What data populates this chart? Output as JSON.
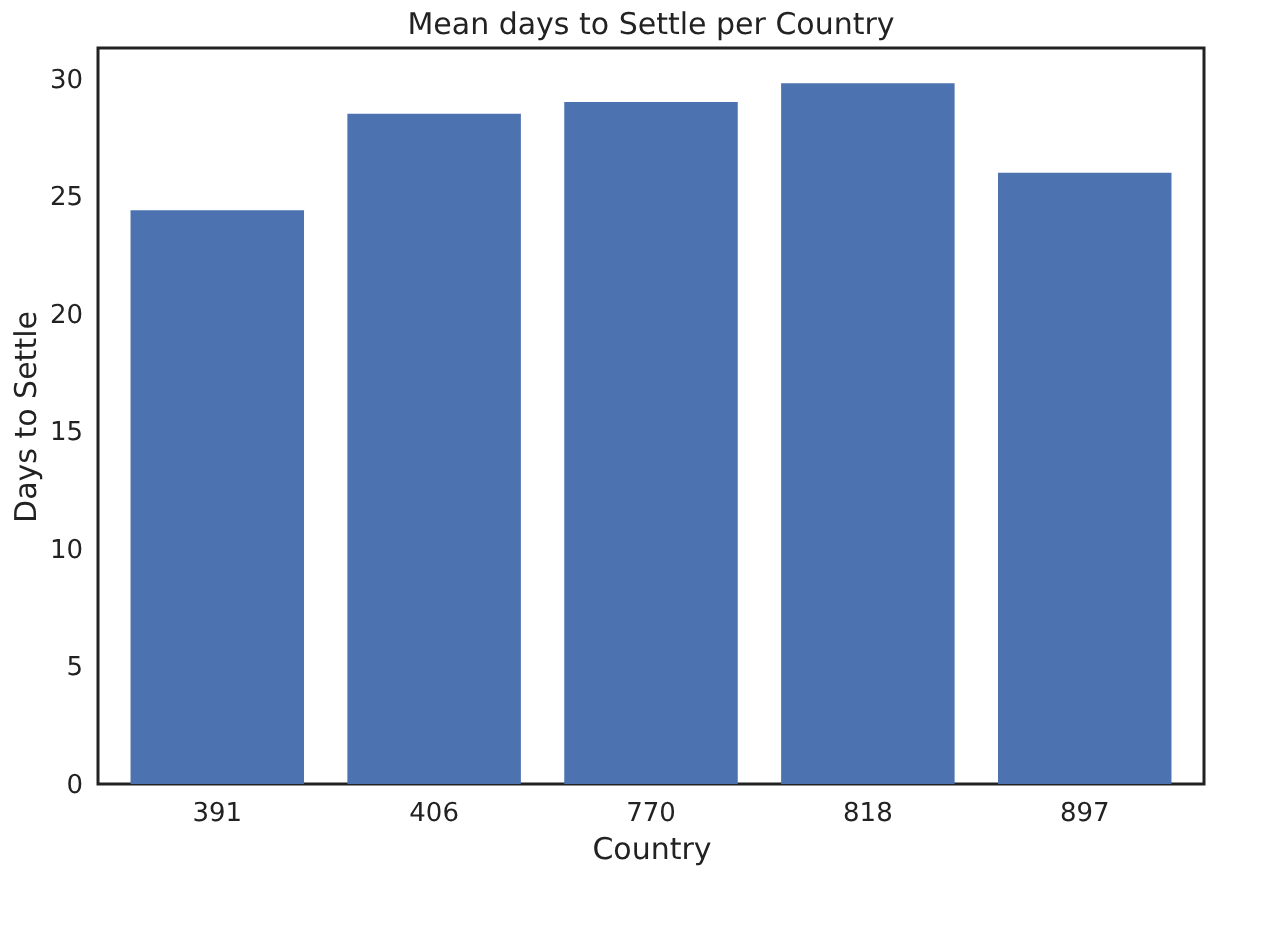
{
  "chart_data": {
    "type": "bar",
    "title": "Mean days to Settle per Country",
    "xlabel": "Country",
    "ylabel": "Days to Settle",
    "categories": [
      "391",
      "406",
      "770",
      "818",
      "897"
    ],
    "values": [
      24.4,
      28.5,
      29.0,
      29.8,
      26.0
    ],
    "color": "#4c72b0",
    "ylim": [
      0,
      31.3
    ],
    "yticks": [
      0,
      5,
      10,
      15,
      20,
      25,
      30
    ],
    "grid": false
  }
}
